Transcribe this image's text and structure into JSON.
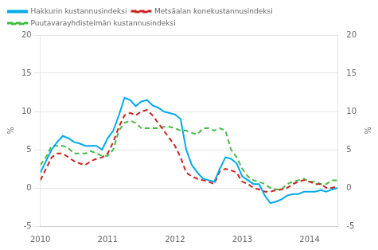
{
  "chart_data": {
    "type": "line",
    "ylabel": "%",
    "y2label": "%",
    "x": [
      2010,
      2010.0833333333333,
      2010.1666666666667,
      2010.25,
      2010.3333333333333,
      2010.4166666666667,
      2010.5,
      2010.5833333333333,
      2010.6666666666667,
      2010.75,
      2010.8333333333333,
      2010.9166666666667,
      2011,
      2011.0833333333333,
      2011.1666666666667,
      2011.25,
      2011.3333333333333,
      2011.4166666666667,
      2011.5,
      2011.5833333333333,
      2011.6666666666667,
      2011.75,
      2011.8333333333333,
      2011.9166666666667,
      2012,
      2012.0833333333333,
      2012.1666666666667,
      2012.25,
      2012.3333333333333,
      2012.4166666666667,
      2012.5,
      2012.5833333333333,
      2012.6666666666667,
      2012.75,
      2012.8333333333333,
      2012.9166666666667,
      2013,
      2013.0833333333333,
      2013.1666666666667,
      2013.25,
      2013.3333333333333,
      2013.4166666666667,
      2013.5,
      2013.5833333333333,
      2013.6666666666667,
      2013.75,
      2013.8333333333333,
      2013.9166666666667,
      2014,
      2014.0833333333333,
      2014.1666666666667,
      2014.25,
      2014.3333333333333,
      2014.4166666666667
    ],
    "xlim": [
      2010,
      2014.4166666666667
    ],
    "xticks": [
      2010,
      2011,
      2012,
      2013,
      2014
    ],
    "ylim": [
      -5,
      20
    ],
    "yticks": [
      -5,
      0,
      5,
      10,
      15,
      20
    ],
    "y2lim": [
      -5,
      20
    ],
    "y2ticks": [
      -5,
      0,
      5,
      10,
      15,
      20
    ],
    "grid": "y",
    "legend": "upper left",
    "series": [
      {
        "name": "Hakkurin kustannusindeksi",
        "color": "#00aaee",
        "line_style": "solid",
        "values": [
          2.0,
          3.5,
          5.0,
          6.0,
          6.8,
          6.5,
          6.0,
          5.8,
          5.5,
          5.5,
          5.5,
          5.0,
          6.5,
          7.5,
          9.5,
          11.8,
          11.5,
          10.7,
          11.3,
          11.5,
          10.8,
          10.5,
          10.0,
          9.8,
          9.6,
          9.0,
          5.0,
          3.0,
          2.0,
          1.2,
          1.0,
          0.8,
          2.5,
          4.0,
          3.8,
          3.2,
          1.5,
          1.0,
          0.5,
          0.5,
          -1.0,
          -2.0,
          -1.8,
          -1.5,
          -1.0,
          -0.8,
          -0.8,
          -0.5,
          -0.5,
          -0.5,
          -0.3,
          -0.5,
          -0.2,
          0.0
        ]
      },
      {
        "name": "Metsäalan konekustannusindeksi",
        "color": "#cc2222",
        "line_style": "dashed",
        "values": [
          1.0,
          2.5,
          4.0,
          4.5,
          4.5,
          4.0,
          3.5,
          3.2,
          3.0,
          3.5,
          3.8,
          4.0,
          4.5,
          6.0,
          8.0,
          9.5,
          9.8,
          9.5,
          10.0,
          10.2,
          9.5,
          8.5,
          7.5,
          6.5,
          5.5,
          4.0,
          2.0,
          1.5,
          1.2,
          1.0,
          0.8,
          0.5,
          2.2,
          2.5,
          2.3,
          2.0,
          0.8,
          0.5,
          0.0,
          -0.2,
          -0.5,
          -0.5,
          -0.3,
          -0.2,
          0.0,
          0.5,
          0.8,
          1.0,
          0.8,
          0.5,
          0.5,
          0.0,
          0.0,
          0.2
        ]
      },
      {
        "name": "Puutavarayhdistelmän kustannusindeksi",
        "color": "#44bb44",
        "line_style": "dashed",
        "values": [
          3.0,
          4.0,
          5.5,
          5.5,
          5.5,
          5.2,
          4.5,
          4.5,
          4.5,
          4.8,
          4.5,
          4.2,
          4.2,
          5.0,
          7.5,
          8.5,
          8.8,
          8.5,
          7.8,
          7.8,
          7.8,
          7.8,
          8.0,
          8.0,
          7.8,
          7.5,
          7.5,
          7.2,
          7.0,
          7.8,
          7.8,
          7.5,
          7.8,
          7.5,
          5.0,
          4.0,
          2.5,
          1.5,
          1.0,
          0.8,
          0.5,
          0.0,
          -0.2,
          -0.2,
          0.5,
          0.8,
          1.0,
          1.2,
          0.8,
          0.8,
          0.5,
          0.5,
          1.0,
          1.0
        ]
      }
    ]
  }
}
